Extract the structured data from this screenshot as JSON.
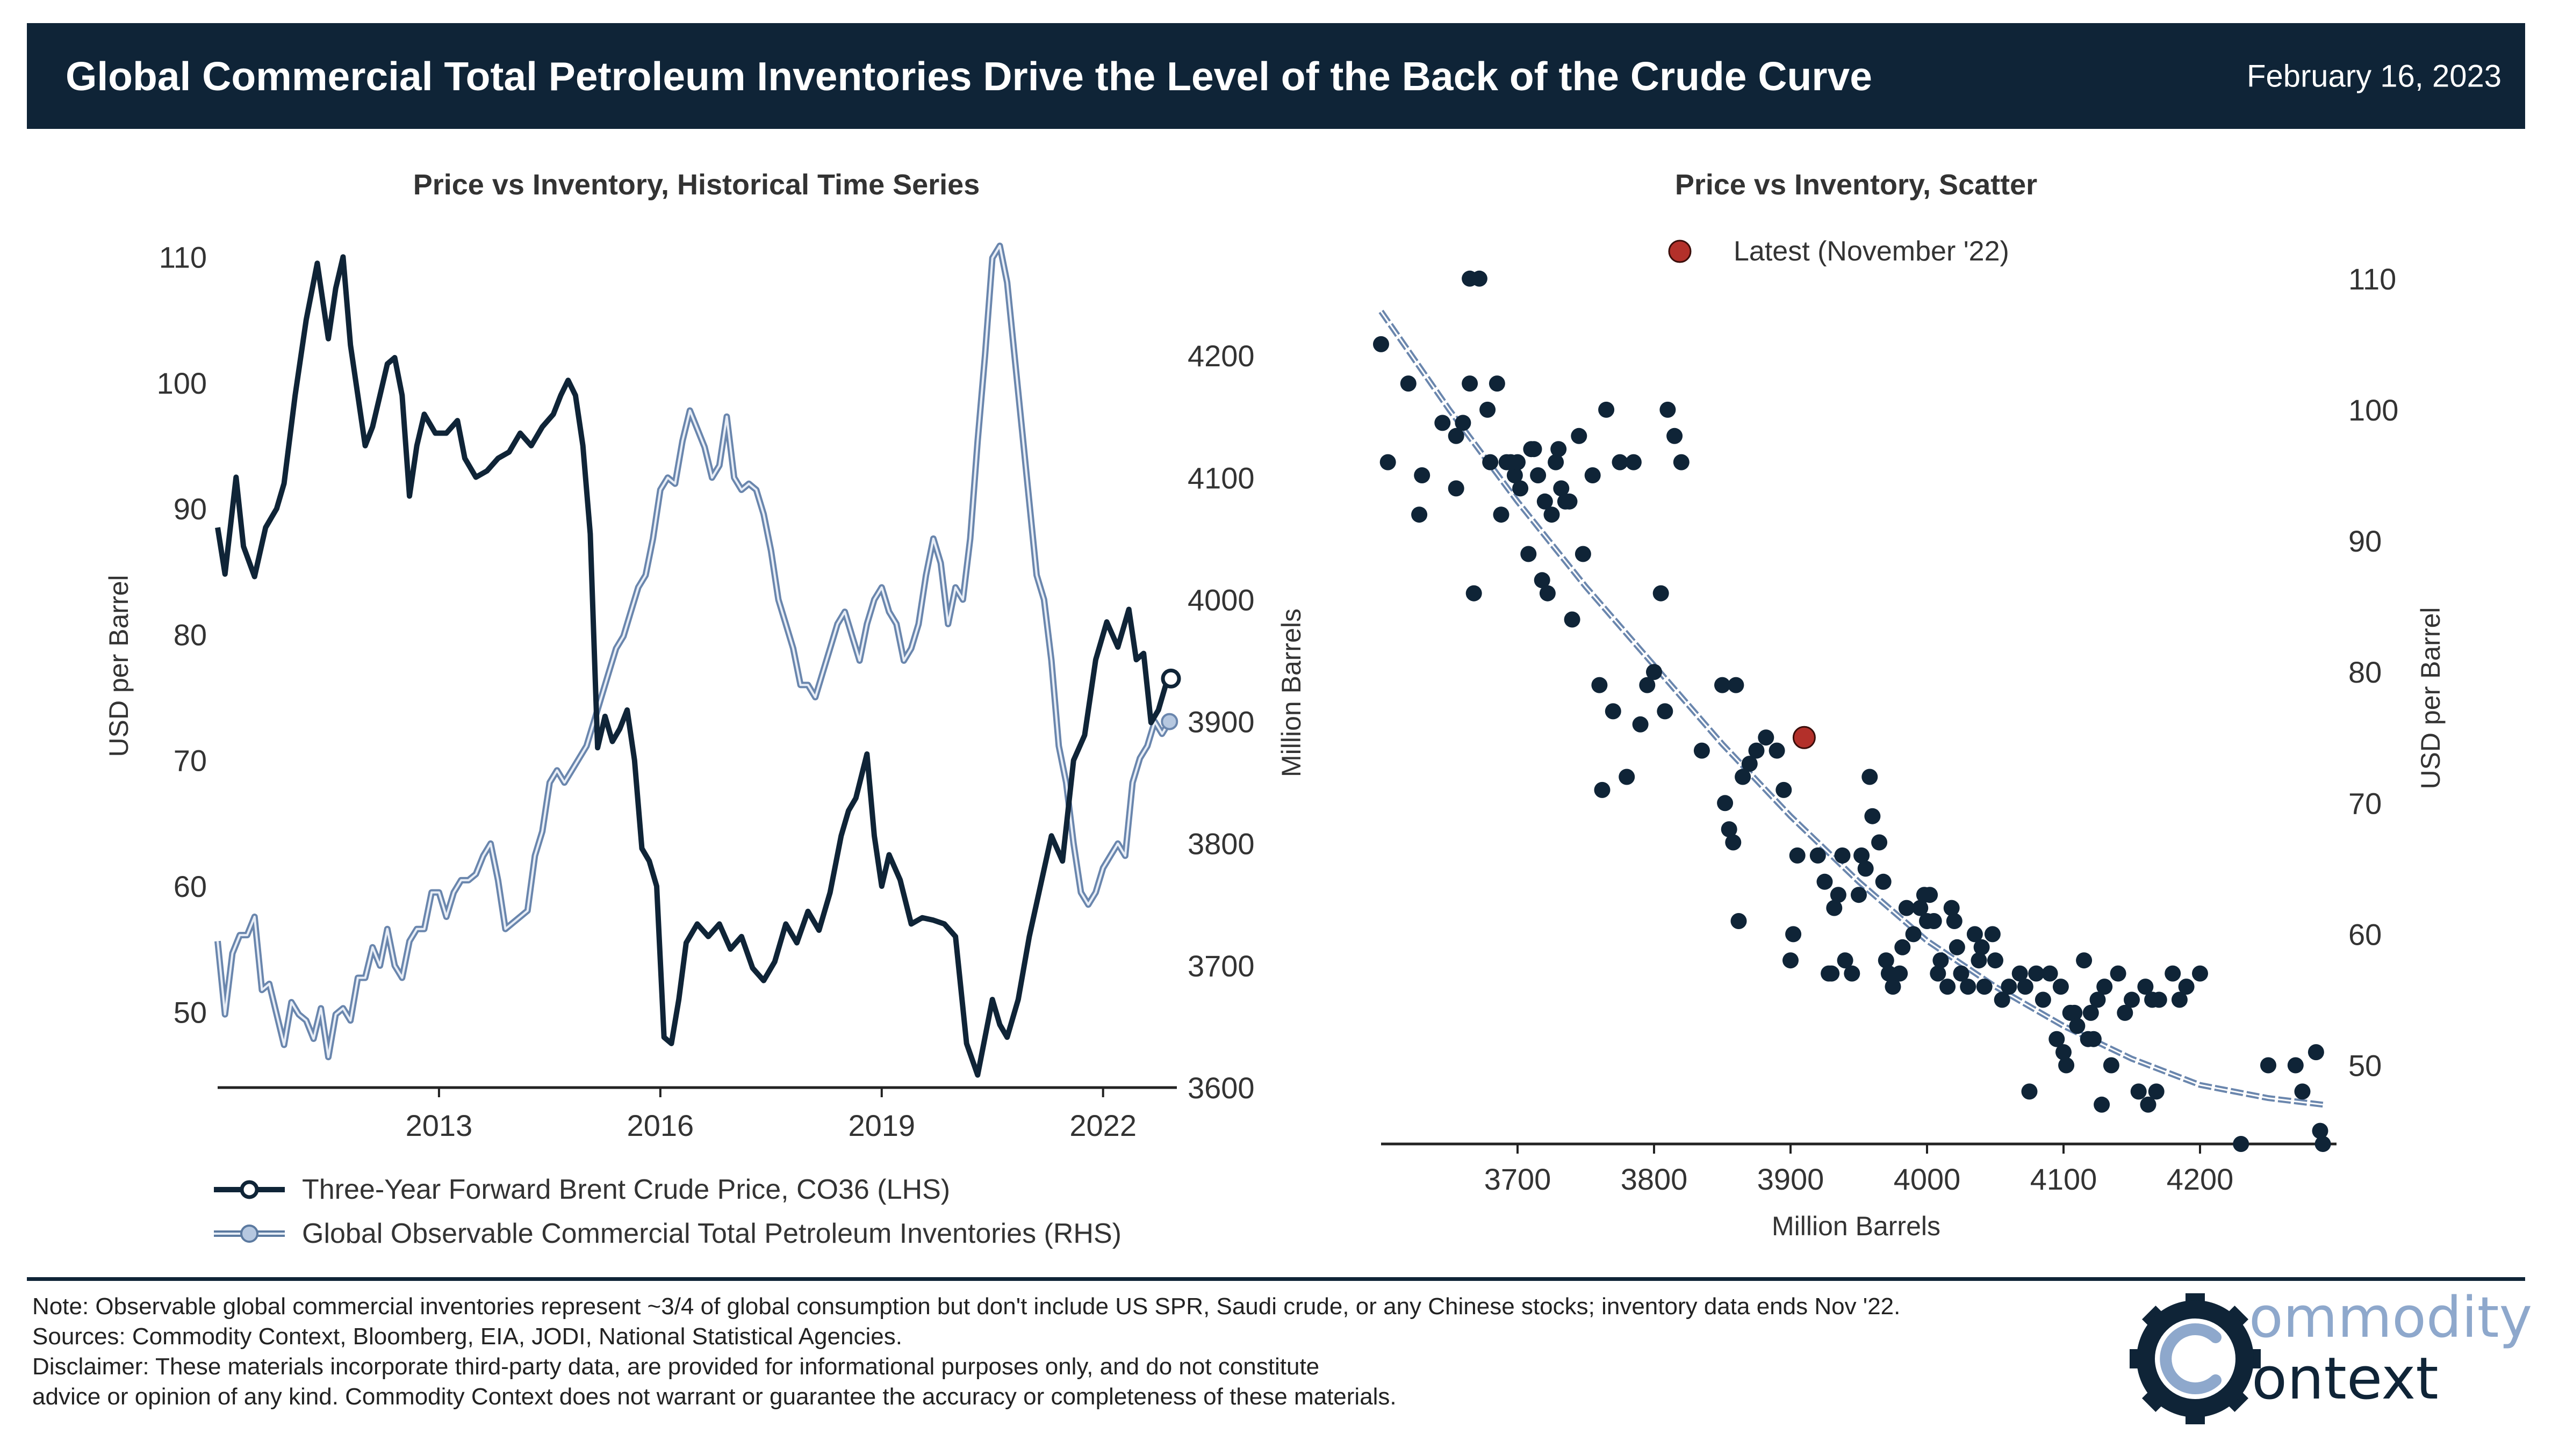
{
  "header": {
    "title": "Global Commercial Total Petroleum Inventories Drive the Level of the Back of the Crude Curve",
    "date": "February 16, 2023"
  },
  "colors": {
    "navy": "#0f2437",
    "light_blue": "#8ea8cc",
    "latest_red": "#b3302a",
    "scatter_point": "#0f2437"
  },
  "chart_data": [
    {
      "type": "line",
      "title": "Price vs Inventory, Historical Time Series",
      "ylabel": "USD per Barrel",
      "y2label": "Million Barrels",
      "xlim": [
        2010.0,
        2023.0
      ],
      "ylim": [
        44,
        111
      ],
      "y2lim": [
        3600,
        4300
      ],
      "x_ticks": [
        "2013",
        "2016",
        "2019",
        "2022"
      ],
      "y_ticks": [
        50,
        60,
        70,
        80,
        90,
        100,
        110
      ],
      "y2_ticks": [
        3600,
        3700,
        3800,
        3900,
        4000,
        4100,
        4200
      ],
      "legend_position": "bottom-left",
      "series": [
        {
          "name": "Three-Year Forward Brent Crude Price, CO36 (LHS)",
          "axis": "left",
          "x": [
            2010.0,
            2010.1,
            2010.25,
            2010.35,
            2010.5,
            2010.65,
            2010.8,
            2010.9,
            2011.05,
            2011.2,
            2011.35,
            2011.5,
            2011.6,
            2011.7,
            2011.8,
            2011.9,
            2012.0,
            2012.1,
            2012.2,
            2012.3,
            2012.4,
            2012.5,
            2012.6,
            2012.7,
            2012.8,
            2012.95,
            2013.1,
            2013.25,
            2013.35,
            2013.5,
            2013.65,
            2013.8,
            2013.95,
            2014.1,
            2014.25,
            2014.4,
            2014.55,
            2014.65,
            2014.75,
            2014.85,
            2014.95,
            2015.05,
            2015.15,
            2015.25,
            2015.35,
            2015.45,
            2015.55,
            2015.65,
            2015.75,
            2015.85,
            2015.95,
            2016.05,
            2016.15,
            2016.25,
            2016.35,
            2016.5,
            2016.65,
            2016.8,
            2016.95,
            2017.1,
            2017.25,
            2017.4,
            2017.55,
            2017.7,
            2017.85,
            2018.0,
            2018.15,
            2018.3,
            2018.45,
            2018.55,
            2018.65,
            2018.8,
            2018.9,
            2019.0,
            2019.1,
            2019.25,
            2019.4,
            2019.55,
            2019.7,
            2019.85,
            2020.0,
            2020.15,
            2020.3,
            2020.4,
            2020.5,
            2020.6,
            2020.7,
            2020.85,
            2021.0,
            2021.15,
            2021.3,
            2021.45,
            2021.6,
            2021.75,
            2021.9,
            2022.05,
            2022.2,
            2022.35,
            2022.45,
            2022.55,
            2022.65,
            2022.75,
            2022.85,
            2022.92
          ],
          "values": [
            88.5,
            84.8,
            92.5,
            87,
            84.6,
            88.5,
            90,
            92,
            99,
            105,
            109.5,
            103.5,
            107.5,
            110,
            103,
            99,
            95,
            96.5,
            99,
            101.5,
            102,
            99,
            91,
            95,
            97.5,
            96,
            96,
            97,
            94,
            92.5,
            93,
            94,
            94.5,
            96,
            95,
            96.5,
            97.5,
            99,
            100.2,
            99,
            95,
            88,
            71,
            73.5,
            71.5,
            72.5,
            74,
            70,
            63,
            62,
            60,
            48,
            47.5,
            51,
            55.5,
            57,
            56,
            57,
            55,
            56,
            53.5,
            52.5,
            54,
            57,
            55.5,
            58,
            56.5,
            59.5,
            64,
            66,
            67,
            70.5,
            64,
            60,
            62.5,
            60.5,
            57,
            57.5,
            57.3,
            57,
            56,
            47.5,
            45,
            48,
            51,
            49,
            48,
            51,
            56,
            60,
            64,
            62,
            70,
            72,
            78,
            81,
            79,
            82,
            78,
            78.5,
            73,
            74,
            76,
            76.5
          ]
        },
        {
          "name": "Global Observable Commercial Total Petroleum Inventories (RHS)",
          "axis": "right",
          "x": [
            2010.0,
            2010.1,
            2010.2,
            2010.3,
            2010.4,
            2010.5,
            2010.6,
            2010.7,
            2010.8,
            2010.9,
            2011.0,
            2011.1,
            2011.2,
            2011.3,
            2011.4,
            2011.5,
            2011.6,
            2011.7,
            2011.8,
            2011.9,
            2012.0,
            2012.1,
            2012.2,
            2012.3,
            2012.4,
            2012.5,
            2012.6,
            2012.7,
            2012.8,
            2012.9,
            2013.0,
            2013.1,
            2013.2,
            2013.3,
            2013.4,
            2013.5,
            2013.6,
            2013.7,
            2013.8,
            2013.9,
            2014.0,
            2014.1,
            2014.2,
            2014.3,
            2014.4,
            2014.5,
            2014.6,
            2014.7,
            2014.8,
            2014.9,
            2015.0,
            2015.1,
            2015.2,
            2015.3,
            2015.4,
            2015.5,
            2015.6,
            2015.7,
            2015.8,
            2015.9,
            2016.0,
            2016.1,
            2016.2,
            2016.3,
            2016.4,
            2016.5,
            2016.6,
            2016.7,
            2016.8,
            2016.9,
            2017.0,
            2017.1,
            2017.2,
            2017.3,
            2017.4,
            2017.5,
            2017.6,
            2017.7,
            2017.8,
            2017.9,
            2018.0,
            2018.1,
            2018.2,
            2018.3,
            2018.4,
            2018.5,
            2018.6,
            2018.7,
            2018.8,
            2018.9,
            2019.0,
            2019.1,
            2019.2,
            2019.3,
            2019.4,
            2019.5,
            2019.6,
            2019.7,
            2019.8,
            2019.9,
            2020.0,
            2020.1,
            2020.2,
            2020.3,
            2020.4,
            2020.5,
            2020.6,
            2020.7,
            2020.8,
            2020.9,
            2021.0,
            2021.1,
            2021.2,
            2021.3,
            2021.4,
            2021.5,
            2021.6,
            2021.7,
            2021.8,
            2021.9,
            2022.0,
            2022.1,
            2022.2,
            2022.3,
            2022.4,
            2022.5,
            2022.6,
            2022.7,
            2022.8,
            2022.9
          ],
          "values": [
            3720,
            3660,
            3710,
            3725,
            3725,
            3740,
            3680,
            3685,
            3660,
            3635,
            3670,
            3660,
            3655,
            3640,
            3665,
            3625,
            3660,
            3665,
            3655,
            3690,
            3690,
            3715,
            3700,
            3730,
            3700,
            3690,
            3720,
            3730,
            3730,
            3760,
            3760,
            3740,
            3760,
            3770,
            3770,
            3775,
            3790,
            3800,
            3770,
            3730,
            3735,
            3740,
            3745,
            3790,
            3810,
            3850,
            3860,
            3850,
            3860,
            3870,
            3880,
            3900,
            3920,
            3940,
            3960,
            3970,
            3990,
            4010,
            4020,
            4050,
            4090,
            4100,
            4095,
            4130,
            4155,
            4140,
            4125,
            4100,
            4110,
            4150,
            4100,
            4090,
            4095,
            4090,
            4070,
            4040,
            4000,
            3980,
            3960,
            3930,
            3930,
            3920,
            3940,
            3960,
            3980,
            3990,
            3970,
            3950,
            3980,
            4000,
            4010,
            3990,
            3980,
            3950,
            3960,
            3980,
            4020,
            4050,
            4030,
            3980,
            4010,
            4000,
            4050,
            4130,
            4200,
            4280,
            4290,
            4260,
            4200,
            4140,
            4080,
            4020,
            4000,
            3950,
            3880,
            3850,
            3800,
            3760,
            3750,
            3760,
            3780,
            3790,
            3800,
            3790,
            3850,
            3870,
            3880,
            3900,
            3890,
            3900
          ]
        }
      ]
    },
    {
      "type": "scatter",
      "title": "Price vs Inventory, Scatter",
      "xlabel": "Million Barrels",
      "ylabel": "USD per Barrel",
      "xlim": [
        3600,
        4300
      ],
      "ylim": [
        44,
        112
      ],
      "x_ticks": [
        3700,
        3800,
        3900,
        4000,
        4100,
        4200
      ],
      "y_ticks": [
        50,
        60,
        70,
        80,
        90,
        100,
        110
      ],
      "legend_position": "top",
      "latest": {
        "label": "Latest (November '22)",
        "x": 3910,
        "y": 75
      },
      "fit_curve": {
        "x": [
          3600,
          3650,
          3700,
          3750,
          3800,
          3850,
          3900,
          3950,
          4000,
          4050,
          4100,
          4150,
          4200,
          4250,
          4290
        ],
        "y": [
          107.5,
          100,
          93,
          86.5,
          80.5,
          74.5,
          69,
          64,
          59.5,
          56,
          53,
          50.5,
          48.5,
          47.5,
          47
        ]
      },
      "points": [
        [
          3600,
          105
        ],
        [
          3605,
          96
        ],
        [
          3620,
          102
        ],
        [
          3628,
          92
        ],
        [
          3630,
          95
        ],
        [
          3645,
          99
        ],
        [
          3655,
          98
        ],
        [
          3655,
          94
        ],
        [
          3660,
          99
        ],
        [
          3665,
          110
        ],
        [
          3672,
          110
        ],
        [
          3668,
          86
        ],
        [
          3665,
          102
        ],
        [
          3678,
          100
        ],
        [
          3680,
          96
        ],
        [
          3685,
          102
        ],
        [
          3688,
          92
        ],
        [
          3692,
          96
        ],
        [
          3695,
          96
        ],
        [
          3698,
          95
        ],
        [
          3700,
          96
        ],
        [
          3702,
          94
        ],
        [
          3708,
          89
        ],
        [
          3710,
          97
        ],
        [
          3712,
          97
        ],
        [
          3715,
          95
        ],
        [
          3718,
          87
        ],
        [
          3720,
          93
        ],
        [
          3722,
          86
        ],
        [
          3725,
          92
        ],
        [
          3728,
          96
        ],
        [
          3730,
          97
        ],
        [
          3732,
          94
        ],
        [
          3735,
          93
        ],
        [
          3738,
          93
        ],
        [
          3740,
          84
        ],
        [
          3745,
          98
        ],
        [
          3748,
          89
        ],
        [
          3755,
          95
        ],
        [
          3760,
          79
        ],
        [
          3762,
          71
        ],
        [
          3765,
          100
        ],
        [
          3770,
          77
        ],
        [
          3775,
          96
        ],
        [
          3780,
          72
        ],
        [
          3785,
          96
        ],
        [
          3790,
          76
        ],
        [
          3795,
          79
        ],
        [
          3800,
          80
        ],
        [
          3805,
          86
        ],
        [
          3808,
          77
        ],
        [
          3810,
          100
        ],
        [
          3815,
          98
        ],
        [
          3820,
          96
        ],
        [
          3835,
          74
        ],
        [
          3850,
          79
        ],
        [
          3852,
          70
        ],
        [
          3855,
          68
        ],
        [
          3858,
          67
        ],
        [
          3860,
          79
        ],
        [
          3862,
          61
        ],
        [
          3865,
          72
        ],
        [
          3870,
          73
        ],
        [
          3875,
          74
        ],
        [
          3882,
          75
        ],
        [
          3890,
          74
        ],
        [
          3895,
          71
        ],
        [
          3900,
          58
        ],
        [
          3902,
          60
        ],
        [
          3905,
          66
        ],
        [
          3920,
          66
        ],
        [
          3925,
          64
        ],
        [
          3928,
          57
        ],
        [
          3930,
          57
        ],
        [
          3932,
          62
        ],
        [
          3935,
          63
        ],
        [
          3938,
          66
        ],
        [
          3940,
          58
        ],
        [
          3945,
          57
        ],
        [
          3950,
          63
        ],
        [
          3952,
          66
        ],
        [
          3955,
          65
        ],
        [
          3958,
          72
        ],
        [
          3960,
          69
        ],
        [
          3965,
          67
        ],
        [
          3968,
          64
        ],
        [
          3970,
          58
        ],
        [
          3972,
          57
        ],
        [
          3975,
          56
        ],
        [
          3980,
          57
        ],
        [
          3982,
          59
        ],
        [
          3985,
          62
        ],
        [
          3990,
          60
        ],
        [
          3995,
          62
        ],
        [
          3998,
          63
        ],
        [
          4000,
          61
        ],
        [
          4002,
          63
        ],
        [
          4005,
          61
        ],
        [
          4008,
          57
        ],
        [
          4010,
          58
        ],
        [
          4015,
          56
        ],
        [
          4018,
          62
        ],
        [
          4020,
          61
        ],
        [
          4022,
          59
        ],
        [
          4025,
          57
        ],
        [
          4030,
          56
        ],
        [
          4035,
          60
        ],
        [
          4038,
          58
        ],
        [
          4040,
          59
        ],
        [
          4042,
          56
        ],
        [
          4048,
          60
        ],
        [
          4050,
          58
        ],
        [
          4055,
          55
        ],
        [
          4060,
          56
        ],
        [
          4068,
          57
        ],
        [
          4072,
          56
        ],
        [
          4075,
          48
        ],
        [
          4080,
          57
        ],
        [
          4085,
          55
        ],
        [
          4090,
          57
        ],
        [
          4095,
          52
        ],
        [
          4098,
          56
        ],
        [
          4100,
          51
        ],
        [
          4102,
          50
        ],
        [
          4105,
          54
        ],
        [
          4108,
          54
        ],
        [
          4110,
          53
        ],
        [
          4115,
          58
        ],
        [
          4118,
          52
        ],
        [
          4120,
          54
        ],
        [
          4122,
          52
        ],
        [
          4125,
          55
        ],
        [
          4128,
          47
        ],
        [
          4130,
          56
        ],
        [
          4135,
          50
        ],
        [
          4140,
          57
        ],
        [
          4145,
          54
        ],
        [
          4150,
          55
        ],
        [
          4155,
          48
        ],
        [
          4160,
          56
        ],
        [
          4162,
          47
        ],
        [
          4165,
          55
        ],
        [
          4168,
          48
        ],
        [
          4170,
          55
        ],
        [
          4180,
          57
        ],
        [
          4185,
          55
        ],
        [
          4190,
          56
        ],
        [
          4200,
          57
        ],
        [
          4230,
          44
        ],
        [
          4250,
          50
        ],
        [
          4270,
          50
        ],
        [
          4275,
          48
        ],
        [
          4285,
          51
        ],
        [
          4288,
          45
        ],
        [
          4290,
          44
        ]
      ]
    }
  ],
  "footer": {
    "note": "Note: Observable global commercial inventories represent ~3/4 of global consumption but don't include US SPR, Saudi crude, or any Chinese stocks; inventory data ends Nov '22.",
    "sources": "Sources: Commodity Context, Bloomberg, EIA, JODI, National Statistical Agencies.",
    "disclaimer_1": "Disclaimer: These materials incorporate third-party data, are provided for informational purposes only, and do not constitute",
    "disclaimer_2": "advice or opinion of any kind. Commodity Context does not warrant or guarantee the accuracy or completeness of these materials."
  },
  "logo": {
    "text_1": "ommodity",
    "text_2": "ontext"
  }
}
